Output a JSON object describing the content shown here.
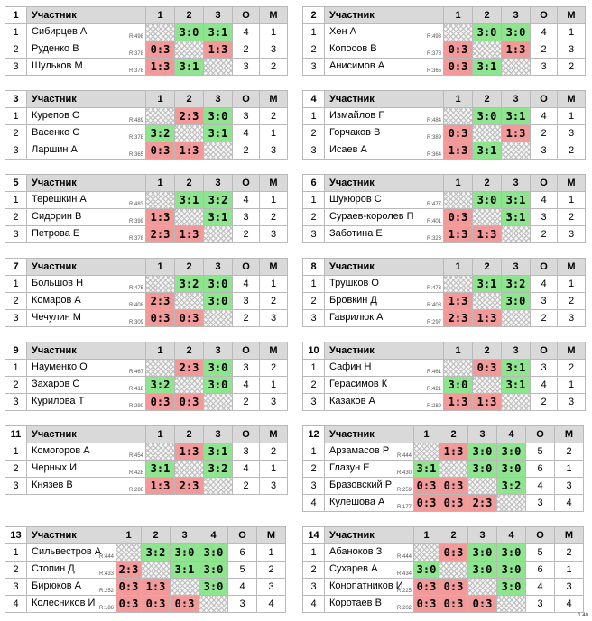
{
  "groups": [
    {
      "number": "1",
      "header": [
        "Участник",
        "1",
        "2",
        "3",
        "O",
        "M"
      ],
      "rows": [
        {
          "pos": "1",
          "name": "Сибирцев А",
          "rating": "R:498",
          "results": [
            "",
            "3:0",
            "3:1"
          ],
          "points": "4",
          "place": "1"
        },
        {
          "pos": "2",
          "name": "Руденко В",
          "rating": "R:378",
          "results": [
            "0:3",
            "",
            "1:3"
          ],
          "points": "2",
          "place": "3"
        },
        {
          "pos": "3",
          "name": "Шульков М",
          "rating": "R:378",
          "results": [
            "1:3",
            "3:1",
            ""
          ],
          "points": "3",
          "place": "2"
        }
      ]
    },
    {
      "number": "2",
      "header": [
        "Участник",
        "1",
        "2",
        "3",
        "O",
        "M"
      ],
      "rows": [
        {
          "pos": "1",
          "name": "Хен А",
          "rating": "R:493",
          "results": [
            "",
            "3:0",
            "3:0"
          ],
          "points": "4",
          "place": "1"
        },
        {
          "pos": "2",
          "name": "Копосов В",
          "rating": "R:378",
          "results": [
            "0:3",
            "",
            "1:3"
          ],
          "points": "2",
          "place": "3"
        },
        {
          "pos": "3",
          "name": "Анисимов А",
          "rating": "R:365",
          "results": [
            "0:3",
            "3:1",
            ""
          ],
          "points": "3",
          "place": "2"
        }
      ]
    },
    {
      "number": "3",
      "header": [
        "Участник",
        "1",
        "2",
        "3",
        "O",
        "M"
      ],
      "rows": [
        {
          "pos": "1",
          "name": "Курепов О",
          "rating": "R:489",
          "results": [
            "",
            "2:3",
            "3:0"
          ],
          "points": "3",
          "place": "2"
        },
        {
          "pos": "2",
          "name": "Васенко С",
          "rating": "R:378",
          "results": [
            "3:2",
            "",
            "3:1"
          ],
          "points": "4",
          "place": "1"
        },
        {
          "pos": "3",
          "name": "Ларшин А",
          "rating": "R:365",
          "results": [
            "0:3",
            "1:3",
            ""
          ],
          "points": "2",
          "place": "3"
        }
      ]
    },
    {
      "number": "4",
      "header": [
        "Участник",
        "1",
        "2",
        "3",
        "O",
        "M"
      ],
      "rows": [
        {
          "pos": "1",
          "name": "Измайлов Г",
          "rating": "R:484",
          "results": [
            "",
            "3:0",
            "3:1"
          ],
          "points": "4",
          "place": "1"
        },
        {
          "pos": "2",
          "name": "Горчаков В",
          "rating": "R:389",
          "results": [
            "0:3",
            "",
            "1:3"
          ],
          "points": "2",
          "place": "3"
        },
        {
          "pos": "3",
          "name": "Исаев А",
          "rating": "R:364",
          "results": [
            "1:3",
            "3:1",
            ""
          ],
          "points": "3",
          "place": "2"
        }
      ]
    },
    {
      "number": "5",
      "header": [
        "Участник",
        "1",
        "2",
        "3",
        "O",
        "M"
      ],
      "rows": [
        {
          "pos": "1",
          "name": "Терешкин А",
          "rating": "R:483",
          "results": [
            "",
            "3:1",
            "3:2"
          ],
          "points": "4",
          "place": "1"
        },
        {
          "pos": "2",
          "name": "Сидорин В",
          "rating": "R:399",
          "results": [
            "1:3",
            "",
            "3:1"
          ],
          "points": "3",
          "place": "2"
        },
        {
          "pos": "3",
          "name": "Петрова Е",
          "rating": "R:378",
          "results": [
            "2:3",
            "1:3",
            ""
          ],
          "points": "2",
          "place": "3"
        }
      ]
    },
    {
      "number": "6",
      "header": [
        "Участник",
        "1",
        "2",
        "3",
        "O",
        "M"
      ],
      "rows": [
        {
          "pos": "1",
          "name": "Шукюров С",
          "rating": "R:477",
          "results": [
            "",
            "3:0",
            "3:1"
          ],
          "points": "4",
          "place": "1"
        },
        {
          "pos": "2",
          "name": "Сураев-королев П",
          "rating": "R:401",
          "results": [
            "0:3",
            "",
            "3:1"
          ],
          "points": "3",
          "place": "2"
        },
        {
          "pos": "3",
          "name": "Заботина Е",
          "rating": "R:323",
          "results": [
            "1:3",
            "1:3",
            ""
          ],
          "points": "2",
          "place": "3"
        }
      ]
    },
    {
      "number": "7",
      "header": [
        "Участник",
        "1",
        "2",
        "3",
        "O",
        "M"
      ],
      "rows": [
        {
          "pos": "1",
          "name": "Большов Н",
          "rating": "R:475",
          "results": [
            "",
            "3:2",
            "3:0"
          ],
          "points": "4",
          "place": "1"
        },
        {
          "pos": "2",
          "name": "Комаров А",
          "rating": "R:408",
          "results": [
            "2:3",
            "",
            "3:0"
          ],
          "points": "3",
          "place": "2"
        },
        {
          "pos": "3",
          "name": "Чечулин М",
          "rating": "R:309",
          "results": [
            "0:3",
            "0:3",
            ""
          ],
          "points": "2",
          "place": "3"
        }
      ]
    },
    {
      "number": "8",
      "header": [
        "Участник",
        "1",
        "2",
        "3",
        "O",
        "M"
      ],
      "rows": [
        {
          "pos": "1",
          "name": "Трушков О",
          "rating": "R:473",
          "results": [
            "",
            "3:1",
            "3:2"
          ],
          "points": "4",
          "place": "1"
        },
        {
          "pos": "2",
          "name": "Бровкин Д",
          "rating": "R:408",
          "results": [
            "1:3",
            "",
            "3:0"
          ],
          "points": "3",
          "place": "2"
        },
        {
          "pos": "3",
          "name": "Гаврилюк А",
          "rating": "R:297",
          "results": [
            "2:3",
            "1:3",
            ""
          ],
          "points": "2",
          "place": "3"
        }
      ]
    },
    {
      "number": "9",
      "header": [
        "Участник",
        "1",
        "2",
        "3",
        "O",
        "M"
      ],
      "rows": [
        {
          "pos": "1",
          "name": "Науменко О",
          "rating": "R:467",
          "results": [
            "",
            "2:3",
            "3:0"
          ],
          "points": "3",
          "place": "2"
        },
        {
          "pos": "2",
          "name": "Захаров С",
          "rating": "R:418",
          "results": [
            "3:2",
            "",
            "3:0"
          ],
          "points": "4",
          "place": "1"
        },
        {
          "pos": "3",
          "name": "Курилова Т",
          "rating": "R:290",
          "results": [
            "0:3",
            "0:3",
            ""
          ],
          "points": "2",
          "place": "3"
        }
      ]
    },
    {
      "number": "10",
      "header": [
        "Участник",
        "1",
        "2",
        "3",
        "O",
        "M"
      ],
      "rows": [
        {
          "pos": "1",
          "name": "Сафин Н",
          "rating": "R:461",
          "results": [
            "",
            "0:3",
            "3:1"
          ],
          "points": "3",
          "place": "2"
        },
        {
          "pos": "2",
          "name": "Герасимов К",
          "rating": "R:421",
          "results": [
            "3:0",
            "",
            "3:1"
          ],
          "points": "4",
          "place": "1"
        },
        {
          "pos": "3",
          "name": "Казаков А",
          "rating": "R:289",
          "results": [
            "1:3",
            "1:3",
            ""
          ],
          "points": "2",
          "place": "3"
        }
      ]
    },
    {
      "number": "11",
      "header": [
        "Участник",
        "1",
        "2",
        "3",
        "O",
        "M"
      ],
      "rows": [
        {
          "pos": "1",
          "name": "Комогоров А",
          "rating": "R:454",
          "results": [
            "",
            "1:3",
            "3:1"
          ],
          "points": "3",
          "place": "2"
        },
        {
          "pos": "2",
          "name": "Черных И",
          "rating": "R:428",
          "results": [
            "3:1",
            "",
            "3:2"
          ],
          "points": "4",
          "place": "1"
        },
        {
          "pos": "3",
          "name": "Князев В",
          "rating": "R:280",
          "results": [
            "1:3",
            "2:3",
            ""
          ],
          "points": "2",
          "place": "3"
        }
      ]
    },
    {
      "number": "12",
      "header": [
        "Участник",
        "1",
        "2",
        "3",
        "4",
        "O",
        "M"
      ],
      "rows": [
        {
          "pos": "1",
          "name": "Арзамасов Р",
          "rating": "R:444",
          "results": [
            "",
            "1:3",
            "3:0",
            "3:0"
          ],
          "points": "5",
          "place": "2"
        },
        {
          "pos": "2",
          "name": "Глазун Е",
          "rating": "R:430",
          "results": [
            "3:1",
            "",
            "3:0",
            "3:0"
          ],
          "points": "6",
          "place": "1"
        },
        {
          "pos": "3",
          "name": "Бразовский Р",
          "rating": "R:259",
          "results": [
            "0:3",
            "0:3",
            "",
            "3:2"
          ],
          "points": "4",
          "place": "3"
        },
        {
          "pos": "4",
          "name": "Кулешова А",
          "rating": "R:177",
          "results": [
            "0:3",
            "0:3",
            "2:3",
            ""
          ],
          "points": "3",
          "place": "4"
        }
      ]
    },
    {
      "number": "13",
      "header": [
        "Участник",
        "1",
        "2",
        "3",
        "4",
        "O",
        "M"
      ],
      "rows": [
        {
          "pos": "1",
          "name": "Сильвестров А",
          "rating": "R:444",
          "results": [
            "",
            "3:2",
            "3:0",
            "3:0"
          ],
          "points": "6",
          "place": "1"
        },
        {
          "pos": "2",
          "name": "Стопин Д",
          "rating": "R:433",
          "results": [
            "2:3",
            "",
            "3:1",
            "3:0"
          ],
          "points": "5",
          "place": "2"
        },
        {
          "pos": "3",
          "name": "Бирюков А",
          "rating": "R:252",
          "results": [
            "0:3",
            "1:3",
            "",
            "3:0"
          ],
          "points": "4",
          "place": "3"
        },
        {
          "pos": "4",
          "name": "Колесников И",
          "rating": "R:186",
          "results": [
            "0:3",
            "0:3",
            "0:3",
            ""
          ],
          "points": "3",
          "place": "4"
        }
      ]
    },
    {
      "number": "14",
      "header": [
        "Участник",
        "1",
        "2",
        "3",
        "4",
        "O",
        "M"
      ],
      "rows": [
        {
          "pos": "1",
          "name": "Абаноков З",
          "rating": "R:444",
          "results": [
            "",
            "0:3",
            "3:0",
            "3:0"
          ],
          "points": "5",
          "place": "2"
        },
        {
          "pos": "2",
          "name": "Сухарев А",
          "rating": "R:434",
          "results": [
            "3:0",
            "",
            "3:0",
            "3:0"
          ],
          "points": "6",
          "place": "1"
        },
        {
          "pos": "3",
          "name": "Конопатников И",
          "rating": "R:225",
          "results": [
            "0:3",
            "0:3",
            "",
            "3:0"
          ],
          "points": "4",
          "place": "3"
        },
        {
          "pos": "4",
          "name": "Коротаев В",
          "rating": "R:202",
          "results": [
            "0:3",
            "0:3",
            "0:3",
            ""
          ],
          "points": "3",
          "place": "4"
        }
      ]
    }
  ],
  "footer": "1.40"
}
